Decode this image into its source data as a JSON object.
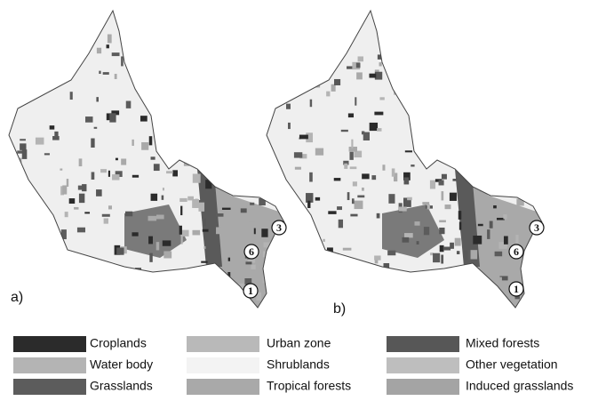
{
  "panels": [
    {
      "label": "a)",
      "markers": [
        "3",
        "6",
        "1"
      ]
    },
    {
      "label": "b)",
      "markers": [
        "3",
        "6",
        "1"
      ]
    }
  ],
  "legend": [
    {
      "name": "Croplands",
      "color": "#2b2b2b"
    },
    {
      "name": "Urban zone",
      "color": "#b9b9b9"
    },
    {
      "name": "Mixed forests",
      "color": "#575757"
    },
    {
      "name": "Water body",
      "color": "#b4b4b4"
    },
    {
      "name": "Shrublands",
      "color": "#f3f3f3"
    },
    {
      "name": "Other vegetation",
      "color": "#bebebe"
    },
    {
      "name": "Grasslands",
      "color": "#5c5c5c"
    },
    {
      "name": "Tropical forests",
      "color": "#a9a9a9"
    },
    {
      "name": "Induced grasslands",
      "color": "#a4a4a4"
    }
  ]
}
